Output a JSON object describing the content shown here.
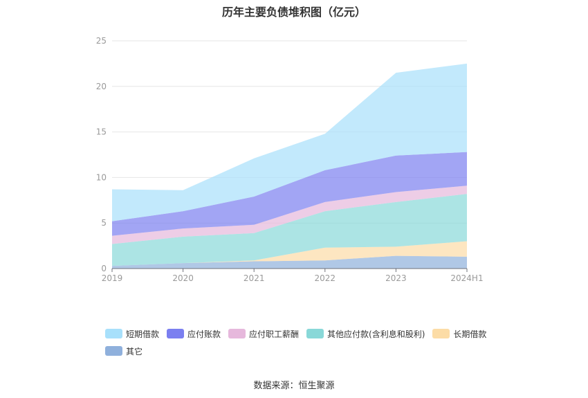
{
  "chart_data": {
    "type": "area",
    "title": "历年主要负债堆积图（亿元）",
    "xlabel": "",
    "ylabel": "",
    "ylim": [
      0,
      25
    ],
    "yticks": [
      0,
      5,
      10,
      15,
      20,
      25
    ],
    "stacked": true,
    "grid": true,
    "legend_position": "bottom",
    "categories": [
      "2019",
      "2020",
      "2021",
      "2022",
      "2023",
      "2024H1"
    ],
    "series": [
      {
        "name": "其它",
        "color": "#8fb0dc",
        "values": [
          0.3,
          0.6,
          0.8,
          0.9,
          1.4,
          1.3
        ]
      },
      {
        "name": "长期借款",
        "color": "#fcdca6",
        "values": [
          0.0,
          0.0,
          0.1,
          1.4,
          1.0,
          1.7
        ]
      },
      {
        "name": "其他应付款(含利息和股利)",
        "color": "#89d8d8",
        "values": [
          2.4,
          2.9,
          3.0,
          4.0,
          4.9,
          5.2
        ]
      },
      {
        "name": "应付职工薪酬",
        "color": "#e6b8dc",
        "values": [
          0.9,
          0.9,
          0.9,
          1.0,
          1.1,
          0.9
        ]
      },
      {
        "name": "应付账款",
        "color": "#7b7ff0",
        "values": [
          1.6,
          1.9,
          3.1,
          3.5,
          4.0,
          3.7
        ]
      },
      {
        "name": "短期借款",
        "color": "#a8e0fb",
        "values": [
          3.5,
          2.3,
          4.2,
          4.0,
          9.1,
          9.7
        ]
      }
    ]
  },
  "legend": {
    "row1": [
      {
        "label": "短期借款",
        "color": "#a8e0fb"
      },
      {
        "label": "应付账款",
        "color": "#7b7ff0"
      },
      {
        "label": "应付职工薪酬",
        "color": "#e6b8dc"
      },
      {
        "label": "其他应付款(含利息和股利)",
        "color": "#89d8d8"
      },
      {
        "label": "长期借款",
        "color": "#fcdca6"
      }
    ],
    "row2": [
      {
        "label": "其它",
        "color": "#8fb0dc"
      }
    ]
  },
  "source": "数据来源：恒生聚源"
}
